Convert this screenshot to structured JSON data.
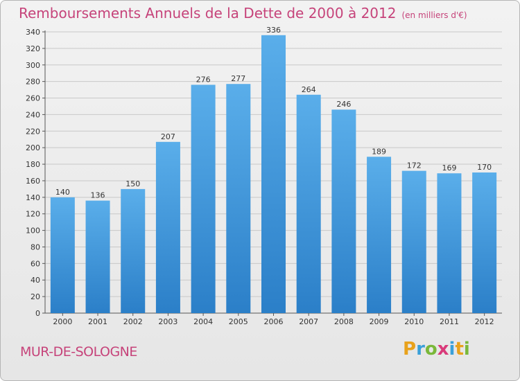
{
  "header": {
    "title": "Remboursements Annuels de la Dette de 2000 à 2012",
    "unit": "(en milliers d'€)"
  },
  "footer": {
    "commune": "MUR-DE-SOLOGNE",
    "logo_letters": [
      "P",
      "r",
      "o",
      "x",
      "i",
      "t",
      "i"
    ],
    "logo_colors": [
      "#e8a21c",
      "#3aa0d9",
      "#7ab83a",
      "#d93a7a",
      "#3aa0d9",
      "#e8a21c",
      "#7ab83a"
    ]
  },
  "colors": {
    "bar_top": "#5aaeea",
    "bar_bottom": "#2b7fc8",
    "grid": "#c8c8c8",
    "title": "#c6437a"
  },
  "chart_data": {
    "type": "bar",
    "categories": [
      "2000",
      "2001",
      "2002",
      "2003",
      "2004",
      "2005",
      "2006",
      "2007",
      "2008",
      "2009",
      "2010",
      "2011",
      "2012"
    ],
    "values": [
      140,
      136,
      150,
      207,
      276,
      277,
      336,
      264,
      246,
      189,
      172,
      169,
      170
    ],
    "title": "Remboursements Annuels de la Dette de 2000 à 2012",
    "xlabel": "",
    "ylabel": "",
    "ylim": [
      0,
      340
    ],
    "yticks": [
      0,
      20,
      40,
      60,
      80,
      100,
      120,
      140,
      160,
      180,
      200,
      220,
      240,
      260,
      280,
      300,
      320,
      340
    ],
    "grid": true
  }
}
